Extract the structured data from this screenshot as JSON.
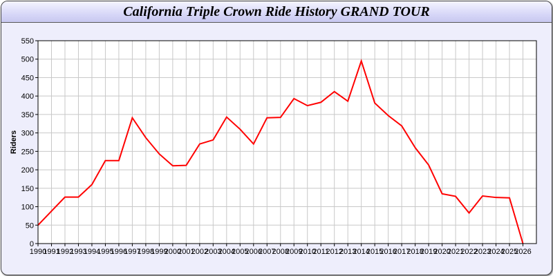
{
  "chart_data": {
    "type": "line",
    "title": "California Triple Crown Ride History GRAND TOUR",
    "xlabel": "",
    "ylabel": "Riders",
    "x": [
      1990,
      1991,
      1992,
      1993,
      1994,
      1995,
      1996,
      1997,
      1998,
      1999,
      2000,
      2001,
      2002,
      2003,
      2004,
      2005,
      2006,
      2007,
      2008,
      2009,
      2010,
      2011,
      2012,
      2013,
      2014,
      2015,
      2016,
      2017,
      2018,
      2019,
      2020,
      2021,
      2022,
      2023,
      2024,
      2025,
      2026
    ],
    "series": [
      {
        "values": [
          50,
          88,
          126,
          126,
          160,
          225,
          225,
          341,
          287,
          243,
          211,
          212,
          270,
          281,
          343,
          310,
          270,
          341,
          342,
          393,
          374,
          383,
          412,
          386,
          495,
          381,
          347,
          319,
          260,
          213,
          135,
          128,
          83,
          129,
          125,
          124,
          0
        ],
        "color": "#ff0000"
      }
    ],
    "xlim": [
      1990,
      2027
    ],
    "ylim": [
      0,
      550
    ],
    "yticks": [
      0,
      50,
      100,
      150,
      200,
      250,
      300,
      350,
      400,
      450,
      500,
      550
    ],
    "grid": true,
    "legend": "none"
  }
}
